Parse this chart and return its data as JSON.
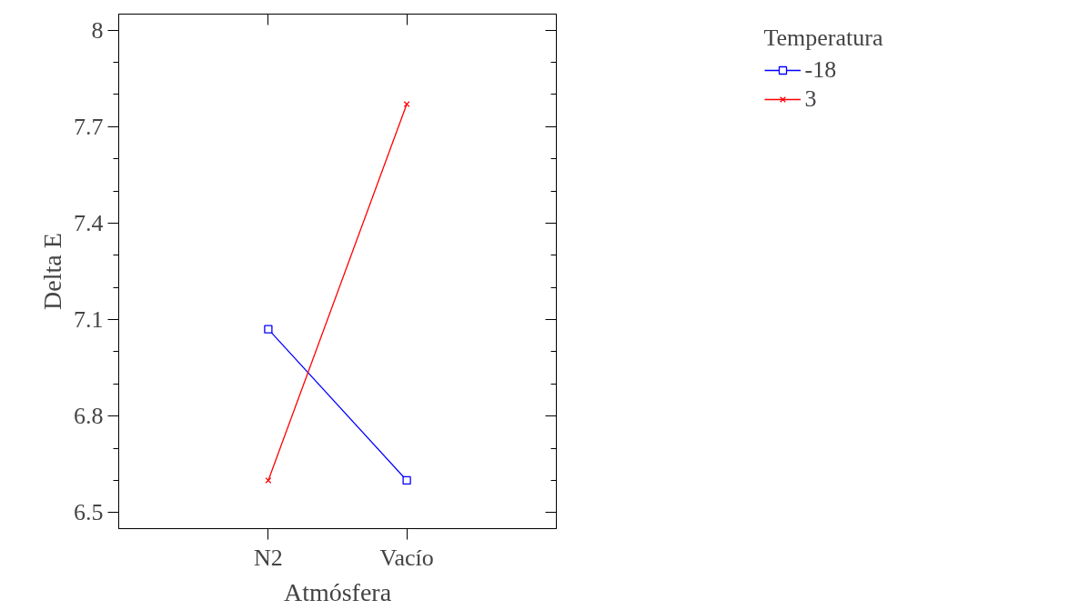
{
  "chart_data": {
    "type": "line",
    "xlabel": "Atmósfera",
    "ylabel": "Delta E",
    "legend_title": "Temperatura",
    "categories": [
      "N2",
      "Vacío"
    ],
    "series": [
      {
        "name": "-18",
        "color": "#0000ff",
        "values": [
          7.07,
          6.6
        ],
        "marker": "square"
      },
      {
        "name": "3",
        "color": "#ff0000",
        "values": [
          6.6,
          7.77
        ],
        "marker": "cross"
      }
    ],
    "ylim": [
      6.45,
      8.05
    ],
    "yticks": [
      6.5,
      6.8,
      7.1,
      7.4,
      7.7,
      8
    ],
    "grid": false,
    "legend": "top right",
    "line_style": "solid"
  }
}
